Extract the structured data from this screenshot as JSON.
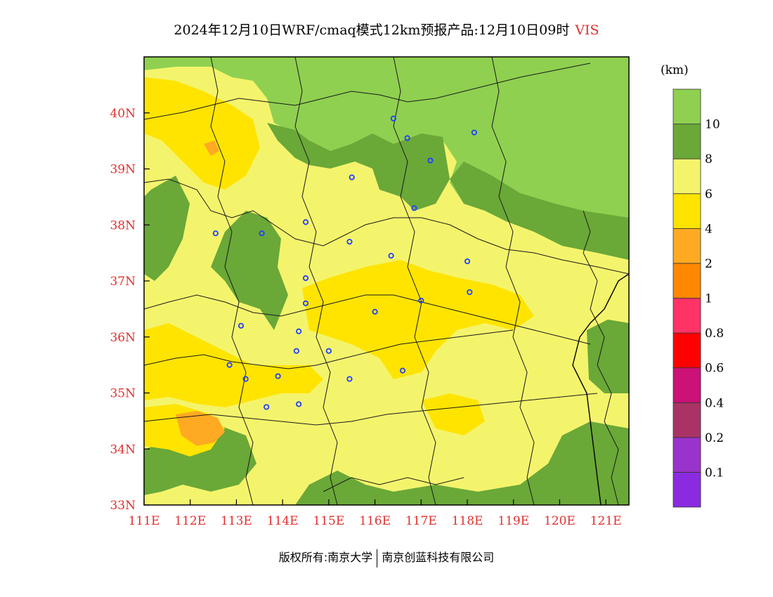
{
  "title": {
    "text": "2024年12月10日WRF/cmaq模式12km预报产品:12月10日09时",
    "variable": "VIS"
  },
  "map": {
    "lon_range": [
      111,
      121.5
    ],
    "lat_range": [
      33,
      41
    ],
    "lon_ticks": [
      "111E",
      "112E",
      "113E",
      "114E",
      "115E",
      "116E",
      "117E",
      "118E",
      "119E",
      "120E",
      "121E"
    ],
    "lat_ticks": [
      "33N",
      "34N",
      "35N",
      "36N",
      "37N",
      "38N",
      "39N",
      "40N"
    ],
    "tick_color": "#e03030",
    "background_color": "#f4f46c",
    "city_marker_color": "#2040ff",
    "city_markers": [
      [
        116.4,
        39.9
      ],
      [
        116.7,
        39.55
      ],
      [
        117.2,
        39.15
      ],
      [
        118.15,
        39.65
      ],
      [
        115.5,
        38.85
      ],
      [
        116.85,
        38.3
      ],
      [
        115.45,
        37.7
      ],
      [
        114.5,
        38.05
      ],
      [
        113.55,
        37.85
      ],
      [
        112.55,
        37.85
      ],
      [
        116.35,
        37.45
      ],
      [
        118.0,
        37.35
      ],
      [
        114.5,
        37.05
      ],
      [
        117.0,
        36.65
      ],
      [
        118.05,
        36.8
      ],
      [
        114.5,
        36.6
      ],
      [
        116.0,
        36.45
      ],
      [
        113.1,
        36.2
      ],
      [
        114.35,
        36.1
      ],
      [
        115.0,
        35.75
      ],
      [
        114.3,
        35.75
      ],
      [
        112.85,
        35.5
      ],
      [
        113.2,
        35.25
      ],
      [
        113.9,
        35.3
      ],
      [
        115.45,
        35.25
      ],
      [
        116.6,
        35.4
      ],
      [
        114.35,
        34.8
      ],
      [
        113.65,
        34.75
      ]
    ]
  },
  "legend": {
    "unit": "(km)",
    "bins": [
      {
        "color": "#8a2be2"
      },
      {
        "color": "#9933cc",
        "label": "0.1"
      },
      {
        "color": "#aa3366",
        "label": "0.2"
      },
      {
        "color": "#cc1177",
        "label": "0.4"
      },
      {
        "color": "#ff0000",
        "label": "0.6"
      },
      {
        "color": "#ff3366",
        "label": "0.8"
      },
      {
        "color": "#ff8800",
        "label": "1"
      },
      {
        "color": "#ffaa22",
        "label": "2"
      },
      {
        "color": "#ffe400",
        "label": "4"
      },
      {
        "color": "#f4f46c",
        "label": "6"
      },
      {
        "color": "#6aa838",
        "label": "8"
      },
      {
        "color": "#8fd050",
        "label": "10"
      }
    ]
  },
  "footer": {
    "left": "版权所有:南京大学",
    "right": "南京创蓝科技有限公司"
  }
}
